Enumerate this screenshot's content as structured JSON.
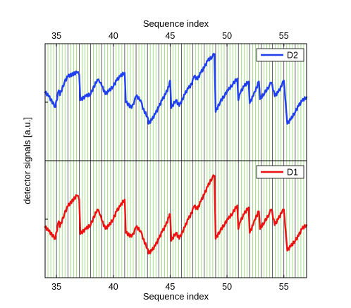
{
  "chart_data": {
    "type": "line",
    "top_axis_label": "Sequence index",
    "xlabel": "Sequence index",
    "ylabel": "detector signals [a.u.]",
    "xlim": [
      34,
      57
    ],
    "xticks": [
      "35",
      "40",
      "45",
      "50",
      "55"
    ],
    "xtick_values": [
      35,
      40,
      45,
      50,
      55
    ],
    "grid": "vertical lines every 0.25 sequence index (green), black line at each integer",
    "y_ticks_labeled": false,
    "series": [
      {
        "name": "D2",
        "panel": "top",
        "color": "#1f3ff0",
        "legend_position": "top-right",
        "x": [
          34.0,
          34.3,
          34.9,
          35.2,
          35.3,
          35.7,
          36.0,
          36.8,
          37.0,
          37.1,
          37.6,
          38.0,
          38.6,
          38.8,
          39.0,
          39.3,
          39.6,
          40.0,
          40.3,
          40.6,
          41.0,
          41.1,
          41.6,
          41.8,
          42.0,
          42.4,
          42.6,
          43.0,
          43.1,
          43.4,
          43.7,
          44.0,
          44.3,
          44.6,
          44.9,
          45.0,
          45.1,
          45.5,
          45.8,
          46.3,
          46.6,
          46.9,
          47.1,
          47.4,
          47.7,
          48.0,
          48.3,
          48.7,
          48.9,
          49.0,
          49.4,
          49.8,
          50.1,
          50.5,
          50.9,
          51.0,
          51.2,
          51.5,
          51.9,
          52.0,
          52.3,
          52.5,
          52.8,
          52.9,
          53.3,
          53.7,
          53.9,
          54.2,
          54.5,
          54.8,
          55.0,
          55.3,
          55.6,
          56.0,
          56.3,
          56.6,
          57.0
        ],
        "y": [
          0.6,
          0.56,
          0.45,
          0.62,
          0.57,
          0.7,
          0.76,
          0.8,
          0.78,
          0.52,
          0.56,
          0.58,
          0.73,
          0.7,
          0.66,
          0.58,
          0.61,
          0.66,
          0.72,
          0.76,
          0.8,
          0.5,
          0.44,
          0.48,
          0.56,
          0.52,
          0.43,
          0.35,
          0.28,
          0.32,
          0.38,
          0.45,
          0.52,
          0.58,
          0.66,
          0.72,
          0.44,
          0.52,
          0.46,
          0.58,
          0.64,
          0.68,
          0.76,
          0.73,
          0.8,
          0.85,
          0.92,
          0.96,
          0.99,
          0.4,
          0.5,
          0.57,
          0.62,
          0.68,
          0.74,
          0.52,
          0.6,
          0.66,
          0.71,
          0.49,
          0.56,
          0.61,
          0.71,
          0.53,
          0.59,
          0.66,
          0.7,
          0.56,
          0.6,
          0.66,
          0.72,
          0.28,
          0.32,
          0.4,
          0.46,
          0.51,
          0.55
        ]
      },
      {
        "name": "D1",
        "panel": "bottom",
        "color": "#ee1111",
        "legend_position": "top-right",
        "x": [
          34.0,
          34.3,
          34.9,
          35.2,
          35.3,
          35.7,
          36.0,
          36.8,
          37.0,
          37.1,
          37.6,
          38.0,
          38.6,
          38.8,
          39.0,
          39.3,
          39.6,
          40.0,
          40.3,
          40.6,
          41.0,
          41.1,
          41.6,
          41.8,
          42.0,
          42.4,
          42.6,
          43.0,
          43.1,
          43.4,
          43.7,
          44.0,
          44.3,
          44.6,
          44.9,
          45.0,
          45.1,
          45.5,
          45.8,
          46.3,
          46.6,
          46.9,
          47.1,
          47.4,
          47.7,
          48.0,
          48.3,
          48.7,
          48.9,
          49.0,
          49.4,
          49.8,
          50.1,
          50.5,
          50.9,
          51.0,
          51.2,
          51.5,
          51.9,
          52.0,
          52.3,
          52.5,
          52.8,
          52.9,
          53.3,
          53.7,
          53.9,
          54.2,
          54.5,
          54.8,
          55.0,
          55.3,
          55.6,
          56.0,
          56.3,
          56.6,
          57.0
        ],
        "y": [
          0.42,
          0.38,
          0.3,
          0.48,
          0.42,
          0.55,
          0.63,
          0.74,
          0.7,
          0.35,
          0.4,
          0.44,
          0.6,
          0.55,
          0.48,
          0.4,
          0.43,
          0.5,
          0.58,
          0.63,
          0.7,
          0.36,
          0.32,
          0.35,
          0.42,
          0.38,
          0.3,
          0.2,
          0.15,
          0.18,
          0.23,
          0.3,
          0.37,
          0.43,
          0.52,
          0.55,
          0.28,
          0.36,
          0.3,
          0.42,
          0.5,
          0.56,
          0.63,
          0.6,
          0.68,
          0.75,
          0.83,
          0.92,
          0.94,
          0.3,
          0.38,
          0.45,
          0.5,
          0.56,
          0.64,
          0.4,
          0.48,
          0.55,
          0.62,
          0.36,
          0.44,
          0.5,
          0.58,
          0.4,
          0.47,
          0.55,
          0.6,
          0.44,
          0.5,
          0.56,
          0.6,
          0.18,
          0.22,
          0.28,
          0.33,
          0.4,
          0.44
        ]
      }
    ]
  }
}
